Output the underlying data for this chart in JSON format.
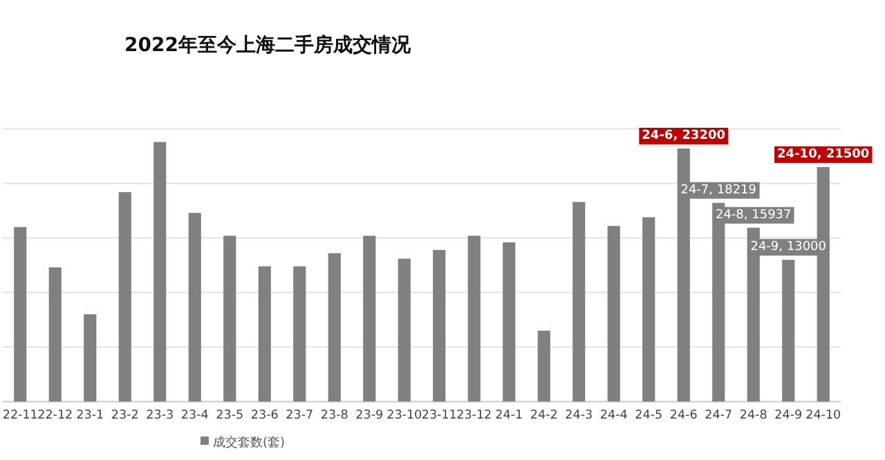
{
  "chart_data": {
    "type": "bar",
    "title": "2022年至今上海二手房成交情况",
    "categories": [
      "22-11",
      "22-12",
      "23-1",
      "23-2",
      "23-3",
      "23-4",
      "23-5",
      "23-6",
      "23-7",
      "23-8",
      "23-9",
      "23-10",
      "23-11",
      "23-12",
      "24-1",
      "24-2",
      "24-3",
      "24-4",
      "24-5",
      "24-6",
      "24-7",
      "24-8",
      "24-9",
      "24-10"
    ],
    "series": [
      {
        "name": "成交套数(套)",
        "color": "#808080",
        "values": [
          16000,
          12300,
          8000,
          19200,
          23800,
          17300,
          15200,
          12400,
          12400,
          13600,
          15200,
          13100,
          13900,
          15200,
          14600,
          6500,
          18300,
          16100,
          16900,
          23200,
          18219,
          15937,
          13000,
          21500
        ],
        "value_labels": [
          null,
          null,
          null,
          null,
          null,
          null,
          null,
          null,
          null,
          null,
          null,
          null,
          null,
          null,
          null,
          null,
          null,
          null,
          null,
          "24-6, 23200",
          "24-7, 18219",
          "24-8, 15937",
          "24-9, 13000",
          "24-10, 21500"
        ]
      }
    ],
    "ylim": [
      0,
      25000
    ],
    "yticks": [
      {
        "value": 0,
        "label": null
      },
      {
        "value": 5000,
        "label": null
      },
      {
        "value": 10000,
        "label": null
      },
      {
        "value": 15000,
        "label": null
      },
      {
        "value": 20000,
        "label": null
      },
      {
        "value": 25000,
        "label": null
      }
    ],
    "grid": "y",
    "legend": "bottom"
  }
}
